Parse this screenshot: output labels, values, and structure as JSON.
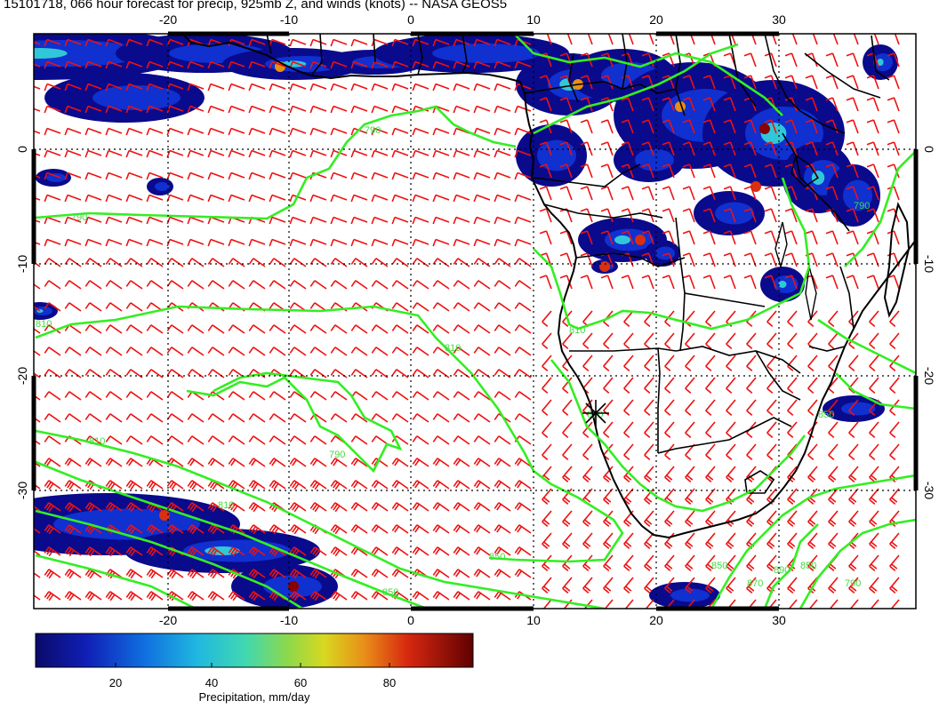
{
  "title": "15101718, 066 hour forecast for precip, 925mb Z, and winds (knots) -- NASA GEOS5",
  "map": {
    "lon_ticks": [
      "-20",
      "-10",
      "0",
      "10",
      "20",
      "30"
    ],
    "lat_ticks": [
      "0",
      "-10",
      "-20",
      "-30"
    ],
    "contour_labels": [
      "790",
      "790",
      "810",
      "810",
      "810",
      "810",
      "790",
      "810",
      "810",
      "850",
      "850",
      "870",
      "890",
      "850",
      "850",
      "790",
      "850",
      "790"
    ],
    "colors": {
      "contour": "#33ee22",
      "wind_barb": "#ee1111",
      "land_outline": "#000000",
      "grid": "#000000"
    },
    "precip_palette": [
      "#0a0a8c",
      "#1030d0",
      "#1a8ae0",
      "#30c8d8",
      "#70d870",
      "#d8d820",
      "#e89010",
      "#d83010",
      "#8a0000"
    ]
  },
  "colorbar": {
    "ticks": [
      "20",
      "40",
      "60",
      "80"
    ],
    "label": "Precipitation, mm/day"
  }
}
